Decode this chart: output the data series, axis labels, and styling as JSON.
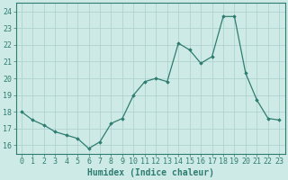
{
  "x": [
    0,
    1,
    2,
    3,
    4,
    5,
    6,
    7,
    8,
    9,
    10,
    11,
    12,
    13,
    14,
    15,
    16,
    17,
    18,
    19,
    20,
    21,
    22,
    23
  ],
  "y": [
    18.0,
    17.5,
    17.2,
    16.8,
    16.6,
    16.4,
    15.8,
    16.2,
    17.3,
    17.6,
    19.0,
    19.8,
    20.0,
    19.8,
    22.1,
    21.7,
    20.9,
    21.3,
    23.7,
    23.7,
    20.3,
    18.7,
    17.6,
    17.5
  ],
  "line_color": "#2e7d70",
  "marker": "D",
  "marker_size": 1.8,
  "line_width": 0.9,
  "xlabel": "Humidex (Indice chaleur)",
  "xlabel_fontsize": 7.5,
  "background_color": "#ceeae7",
  "grid_color": "#aacfcc",
  "tick_color": "#2e7d70",
  "label_color": "#2e7d70",
  "ylim": [
    15.5,
    24.5
  ],
  "xlim": [
    -0.5,
    23.5
  ],
  "yticks": [
    16,
    17,
    18,
    19,
    20,
    21,
    22,
    23,
    24
  ],
  "xticks": [
    0,
    1,
    2,
    3,
    4,
    5,
    6,
    7,
    8,
    9,
    10,
    11,
    12,
    13,
    14,
    15,
    16,
    17,
    18,
    19,
    20,
    21,
    22,
    23
  ],
  "tick_fontsize": 6.0,
  "xlabel_fontsize_val": 7.0
}
